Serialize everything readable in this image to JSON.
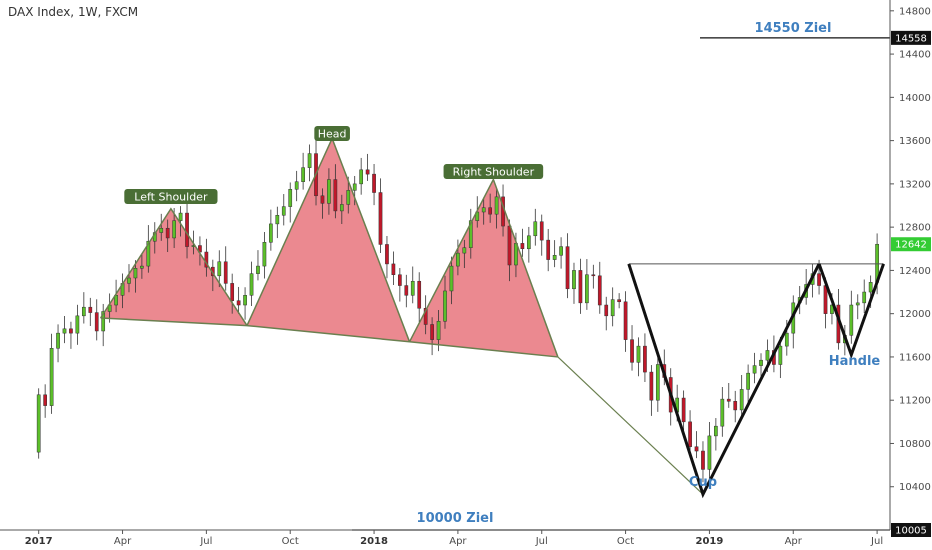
{
  "chart_data": {
    "type": "candlestick",
    "title": "DAX Index, 1W, FXCM",
    "ylim": [
      10000,
      14900
    ],
    "y_ticks": [
      10400,
      10800,
      11200,
      11600,
      12000,
      12400,
      12800,
      13200,
      13600,
      14000,
      14400,
      14800
    ],
    "x_ticks": [
      {
        "label": "2017",
        "t": 0,
        "year": true
      },
      {
        "label": "Apr",
        "t": 13
      },
      {
        "label": "Jul",
        "t": 26
      },
      {
        "label": "Oct",
        "t": 39
      },
      {
        "label": "2018",
        "t": 52,
        "year": true
      },
      {
        "label": "Apr",
        "t": 65
      },
      {
        "label": "Jul",
        "t": 78
      },
      {
        "label": "Oct",
        "t": 91
      },
      {
        "label": "2019",
        "t": 104,
        "year": true
      },
      {
        "label": "Apr",
        "t": 117
      },
      {
        "label": "Jul",
        "t": 130
      }
    ],
    "t_range": [
      -6,
      132
    ],
    "colors": {
      "up": "#5cbf2a",
      "down": "#c0182a",
      "fill": "#e8747c",
      "pattern_line": "#6a7f4f",
      "pill": "#4a6e35",
      "badge_green": "#33cc33"
    },
    "closes": [
      11250,
      11150,
      11680,
      11820,
      11860,
      11820,
      11980,
      12060,
      12010,
      11840,
      12020,
      12080,
      12170,
      12280,
      12330,
      12420,
      12440,
      12670,
      12750,
      12790,
      12700,
      12860,
      12930,
      12620,
      12630,
      12570,
      12430,
      12350,
      12480,
      12280,
      12120,
      12080,
      12170,
      12370,
      12440,
      12660,
      12830,
      12910,
      12990,
      13150,
      13220,
      13350,
      13480,
      13090,
      13020,
      13240,
      12950,
      13010,
      13140,
      13200,
      13330,
      13290,
      13120,
      12640,
      12460,
      12360,
      12260,
      12170,
      12300,
      12050,
      11900,
      11760,
      11930,
      12210,
      12440,
      12560,
      12610,
      12860,
      12940,
      12980,
      12920,
      13080,
      12810,
      12450,
      12650,
      12600,
      12720,
      12850,
      12680,
      12500,
      12540,
      12620,
      12230,
      12400,
      12100,
      12360,
      12350,
      12080,
      11980,
      12130,
      12110,
      11760,
      11550,
      11700,
      11460,
      11200,
      11530,
      11410,
      11090,
      11220,
      11000,
      10770,
      10730,
      10560,
      10870,
      10960,
      11210,
      11190,
      11110,
      11300,
      11450,
      11520,
      11570,
      11660,
      11530,
      11700,
      11820,
      12100,
      12150,
      12270,
      12370,
      12260,
      12000,
      12080,
      11730,
      11800,
      12080,
      12100,
      12200,
      12290,
      12642
    ],
    "patterns": {
      "left_shoulder": {
        "label": "Left Shoulder",
        "points": [
          [
            9.6,
            11960
          ],
          [
            20.5,
            12970
          ],
          [
            32.3,
            11890
          ]
        ]
      },
      "head": {
        "label": "Head",
        "points": [
          [
            32.3,
            11890
          ],
          [
            45.5,
            13620
          ],
          [
            57.5,
            11740
          ]
        ]
      },
      "right_shoulder": {
        "label": "Right Shoulder",
        "points": [
          [
            57.5,
            11740
          ],
          [
            70.5,
            13240
          ],
          [
            80.5,
            11600
          ]
        ]
      },
      "cup": {
        "label": "Cup",
        "points": [
          [
            103,
            10330
          ],
          [
            121,
            12460
          ]
        ]
      },
      "handle": {
        "label": "Handle",
        "points": [
          [
            121,
            12460
          ],
          [
            126,
            11620
          ],
          [
            131,
            12460
          ]
        ]
      }
    },
    "annotations": {
      "target_up": {
        "label": "14550 Ziel",
        "value": 14550,
        "badge": "14558"
      },
      "target_down": {
        "label": "10000 Ziel",
        "value": 10000,
        "badge": "10005"
      },
      "last_price": {
        "badge": "12642"
      }
    }
  }
}
